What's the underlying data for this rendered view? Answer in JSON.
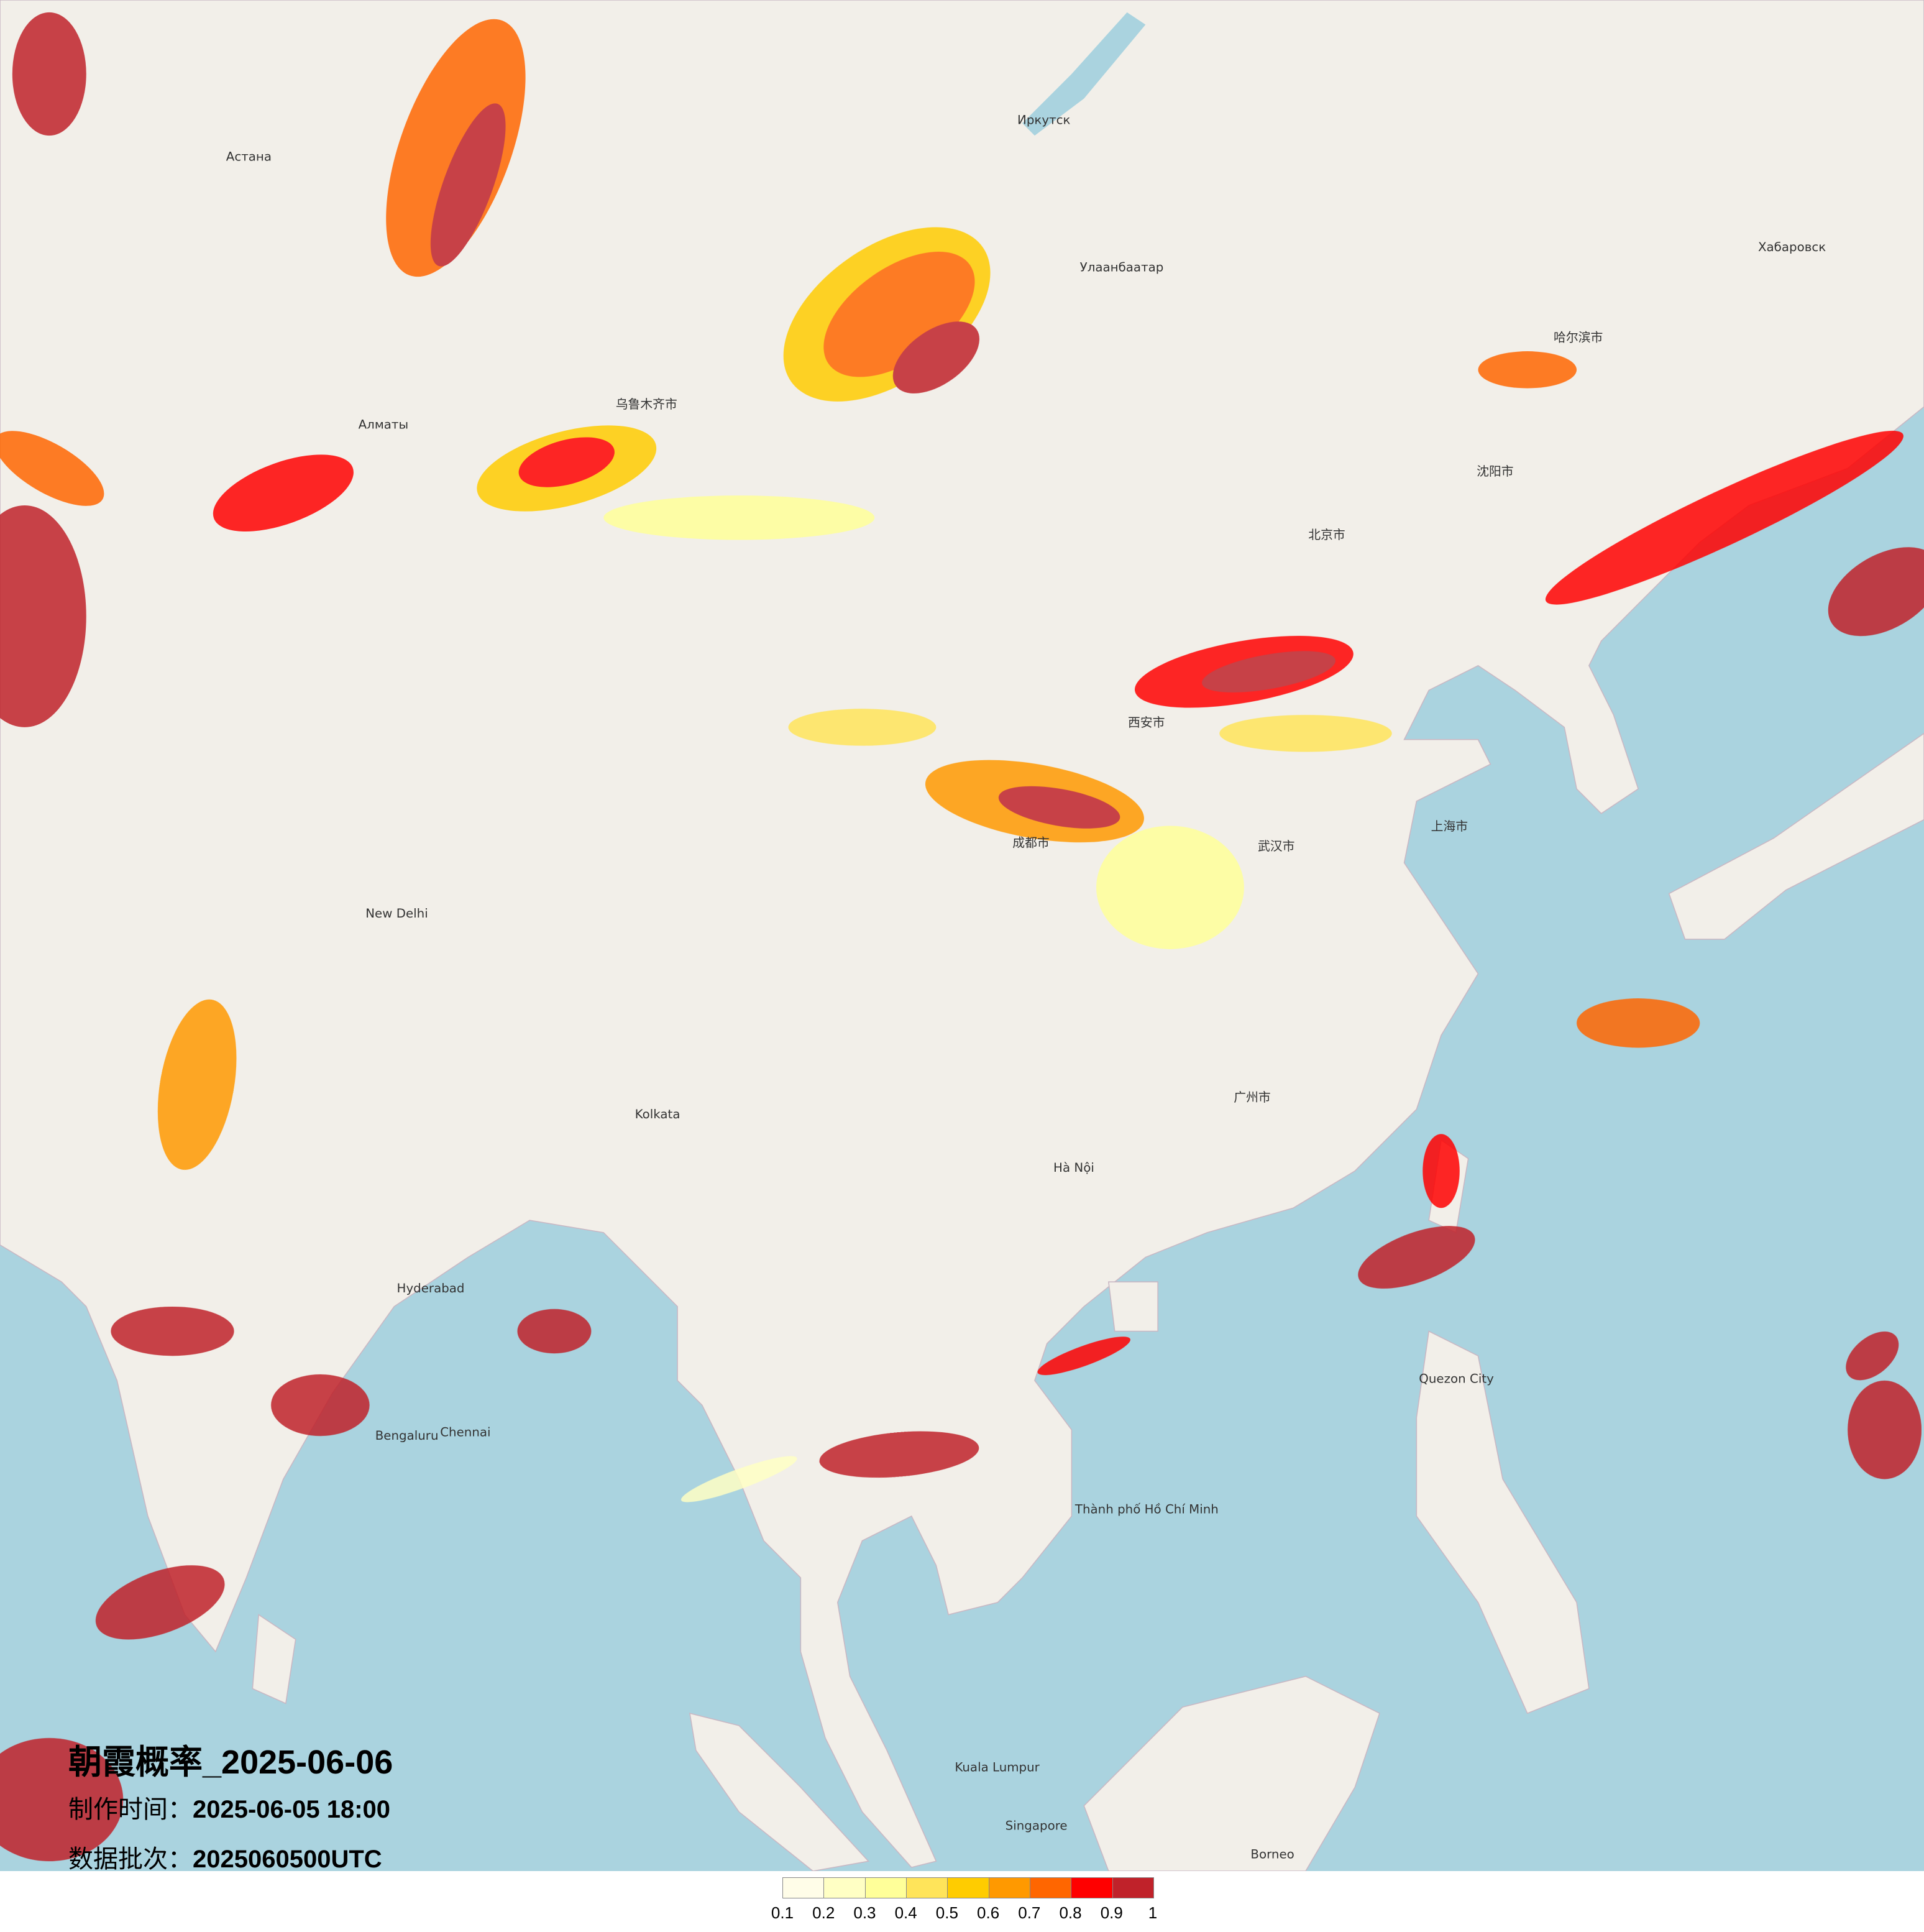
{
  "title": "朝霞概率_2025-06-06",
  "production_time": {
    "label": "制作时间：",
    "value": "2025-06-05 18:00"
  },
  "data_batch": {
    "label": "数据批次：",
    "value": "2025060500UTC"
  },
  "legend": {
    "colors": [
      "#fffde8",
      "#ffffc4",
      "#ffff99",
      "#ffe45a",
      "#ffcc00",
      "#ff9900",
      "#ff6600",
      "#ff0000",
      "#c0222a"
    ],
    "labels": [
      "0.1",
      "0.2",
      "0.3",
      "0.4",
      "0.5",
      "0.6",
      "0.7",
      "0.8",
      "0.9",
      "1"
    ]
  },
  "map_colors": {
    "land": "#f2efe9",
    "sea": "#aad3df"
  },
  "places": [
    {
      "name": "Улаанбаатар",
      "lon": 106.9,
      "lat": 47.9
    },
    {
      "name": "Иркутск",
      "lon": 104.3,
      "lat": 52.3
    },
    {
      "name": "Алматы",
      "lon": 76.9,
      "lat": 43.2
    },
    {
      "name": "Астана",
      "lon": 71.4,
      "lat": 51.2
    },
    {
      "name": "New Delhi",
      "lon": 77.2,
      "lat": 28.6
    },
    {
      "name": "Kolkata",
      "lon": 88.4,
      "lat": 22.6
    },
    {
      "name": "Hyderabad",
      "lon": 78.5,
      "lat": 17.4
    },
    {
      "name": "Chennai",
      "lon": 80.3,
      "lat": 13.1
    },
    {
      "name": "Bengaluru",
      "lon": 77.6,
      "lat": 13.0
    },
    {
      "name": "Hà Nội",
      "lon": 105.8,
      "lat": 21.0
    },
    {
      "name": "Thành phố Hồ Chí Minh",
      "lon": 106.7,
      "lat": 10.8
    },
    {
      "name": "Quezon City",
      "lon": 121.0,
      "lat": 14.7
    },
    {
      "name": "Kuala Lumpur",
      "lon": 101.7,
      "lat": 3.1
    },
    {
      "name": "Singapore",
      "lon": 103.8,
      "lat": 1.35
    },
    {
      "name": "北京市",
      "lon": 116.4,
      "lat": 39.9
    },
    {
      "name": "上海市",
      "lon": 121.5,
      "lat": 31.2
    },
    {
      "name": "广州市",
      "lon": 113.3,
      "lat": 23.1
    },
    {
      "name": "成都市",
      "lon": 104.1,
      "lat": 30.7
    },
    {
      "name": "西安市",
      "lon": 108.9,
      "lat": 34.3
    },
    {
      "name": "武汉市",
      "lon": 114.3,
      "lat": 30.6
    },
    {
      "name": "沈阳市",
      "lon": 123.4,
      "lat": 41.8
    },
    {
      "name": "哈尔滨市",
      "lon": 126.6,
      "lat": 45.8
    },
    {
      "name": "乌鲁木齐市",
      "lon": 87.6,
      "lat": 43.8
    },
    {
      "name": "Хабаровск",
      "lon": 135.1,
      "lat": 48.5
    },
    {
      "name": "Borneo",
      "lon": 114.0,
      "lat": 0.5
    }
  ]
}
